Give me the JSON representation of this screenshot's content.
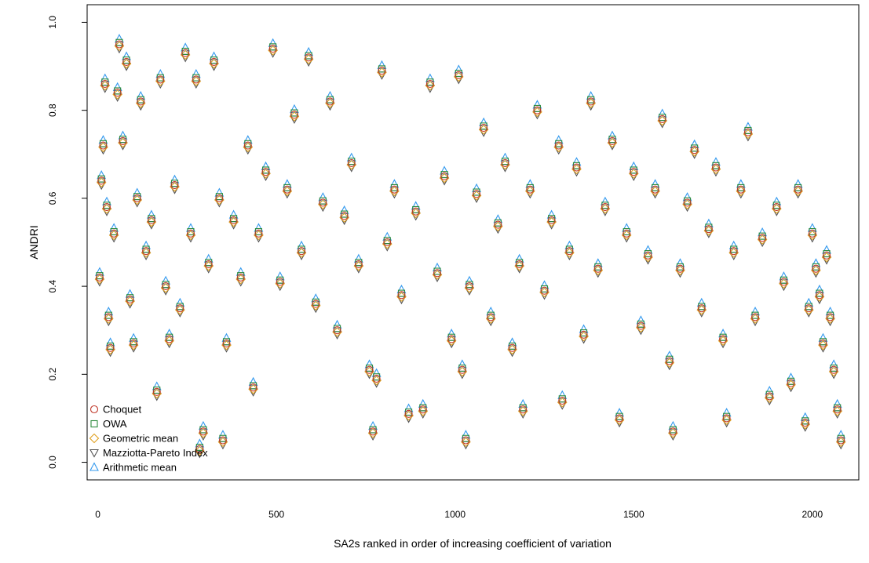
{
  "chart_data": {
    "type": "scatter",
    "xlabel": "SA2s ranked in order of increasing coefficient of variation",
    "ylabel": "ANDRI",
    "xlim": [
      -30,
      2130
    ],
    "ylim": [
      -0.04,
      1.04
    ],
    "x_ticks": [
      {
        "value": 0,
        "label": "0"
      },
      {
        "value": 500,
        "label": "500"
      },
      {
        "value": 1000,
        "label": "1000"
      },
      {
        "value": 1500,
        "label": "1500"
      },
      {
        "value": 2000,
        "label": "2000"
      }
    ],
    "y_ticks": [
      {
        "value": 0.0,
        "label": "0.0"
      },
      {
        "value": 0.2,
        "label": "0.2"
      },
      {
        "value": 0.4,
        "label": "0.4"
      },
      {
        "value": 0.6,
        "label": "0.6"
      },
      {
        "value": 0.8,
        "label": "0.8"
      },
      {
        "value": 1.0,
        "label": "1.0"
      }
    ],
    "grid": false,
    "legend_position": "bottom-left",
    "series": [
      {
        "name": "Choquet",
        "marker": "circle",
        "color": "#c0392b"
      },
      {
        "name": "OWA",
        "marker": "square",
        "color": "#2e8b3e"
      },
      {
        "name": "Geometric mean",
        "marker": "diamond",
        "color": "#e0a020"
      },
      {
        "name": "Mazziotta-Pareto Index",
        "marker": "triangle-down",
        "color": "#555555"
      },
      {
        "name": "Arithmetic mean",
        "marker": "triangle-up",
        "color": "#3399ee"
      }
    ],
    "summary_points": [
      [
        5,
        0.42
      ],
      [
        10,
        0.64
      ],
      [
        15,
        0.72
      ],
      [
        20,
        0.86
      ],
      [
        25,
        0.58
      ],
      [
        30,
        0.33
      ],
      [
        35,
        0.26
      ],
      [
        45,
        0.52
      ],
      [
        55,
        0.84
      ],
      [
        60,
        0.95
      ],
      [
        70,
        0.73
      ],
      [
        80,
        0.91
      ],
      [
        90,
        0.37
      ],
      [
        100,
        0.27
      ],
      [
        110,
        0.6
      ],
      [
        120,
        0.82
      ],
      [
        135,
        0.48
      ],
      [
        150,
        0.55
      ],
      [
        165,
        0.16
      ],
      [
        175,
        0.87
      ],
      [
        190,
        0.4
      ],
      [
        200,
        0.28
      ],
      [
        215,
        0.63
      ],
      [
        230,
        0.35
      ],
      [
        245,
        0.93
      ],
      [
        260,
        0.52
      ],
      [
        275,
        0.87
      ],
      [
        285,
        0.03
      ],
      [
        295,
        0.07
      ],
      [
        310,
        0.45
      ],
      [
        325,
        0.91
      ],
      [
        340,
        0.6
      ],
      [
        350,
        0.05
      ],
      [
        360,
        0.27
      ],
      [
        380,
        0.55
      ],
      [
        400,
        0.42
      ],
      [
        420,
        0.72
      ],
      [
        435,
        0.17
      ],
      [
        450,
        0.52
      ],
      [
        470,
        0.66
      ],
      [
        490,
        0.94
      ],
      [
        510,
        0.41
      ],
      [
        530,
        0.62
      ],
      [
        550,
        0.79
      ],
      [
        570,
        0.48
      ],
      [
        590,
        0.92
      ],
      [
        610,
        0.36
      ],
      [
        630,
        0.59
      ],
      [
        650,
        0.82
      ],
      [
        670,
        0.3
      ],
      [
        690,
        0.56
      ],
      [
        710,
        0.68
      ],
      [
        730,
        0.45
      ],
      [
        760,
        0.21
      ],
      [
        770,
        0.07
      ],
      [
        780,
        0.19
      ],
      [
        795,
        0.89
      ],
      [
        810,
        0.5
      ],
      [
        830,
        0.62
      ],
      [
        850,
        0.38
      ],
      [
        870,
        0.11
      ],
      [
        890,
        0.57
      ],
      [
        910,
        0.12
      ],
      [
        930,
        0.86
      ],
      [
        950,
        0.43
      ],
      [
        970,
        0.65
      ],
      [
        990,
        0.28
      ],
      [
        1010,
        0.88
      ],
      [
        1020,
        0.21
      ],
      [
        1030,
        0.05
      ],
      [
        1040,
        0.4
      ],
      [
        1060,
        0.61
      ],
      [
        1080,
        0.76
      ],
      [
        1100,
        0.33
      ],
      [
        1120,
        0.54
      ],
      [
        1140,
        0.68
      ],
      [
        1160,
        0.26
      ],
      [
        1180,
        0.45
      ],
      [
        1190,
        0.12
      ],
      [
        1210,
        0.62
      ],
      [
        1230,
        0.8
      ],
      [
        1250,
        0.39
      ],
      [
        1270,
        0.55
      ],
      [
        1290,
        0.72
      ],
      [
        1300,
        0.14
      ],
      [
        1320,
        0.48
      ],
      [
        1340,
        0.67
      ],
      [
        1360,
        0.29
      ],
      [
        1380,
        0.82
      ],
      [
        1400,
        0.44
      ],
      [
        1420,
        0.58
      ],
      [
        1440,
        0.73
      ],
      [
        1460,
        0.1
      ],
      [
        1480,
        0.52
      ],
      [
        1500,
        0.66
      ],
      [
        1520,
        0.31
      ],
      [
        1540,
        0.47
      ],
      [
        1560,
        0.62
      ],
      [
        1580,
        0.78
      ],
      [
        1600,
        0.23
      ],
      [
        1610,
        0.07
      ],
      [
        1630,
        0.44
      ],
      [
        1650,
        0.59
      ],
      [
        1670,
        0.71
      ],
      [
        1690,
        0.35
      ],
      [
        1710,
        0.53
      ],
      [
        1730,
        0.67
      ],
      [
        1750,
        0.28
      ],
      [
        1760,
        0.1
      ],
      [
        1780,
        0.48
      ],
      [
        1800,
        0.62
      ],
      [
        1820,
        0.75
      ],
      [
        1840,
        0.33
      ],
      [
        1860,
        0.51
      ],
      [
        1880,
        0.15
      ],
      [
        1900,
        0.58
      ],
      [
        1920,
        0.41
      ],
      [
        1940,
        0.18
      ],
      [
        1960,
        0.62
      ],
      [
        1980,
        0.09
      ],
      [
        1990,
        0.35
      ],
      [
        2000,
        0.52
      ],
      [
        2010,
        0.44
      ],
      [
        2020,
        0.38
      ],
      [
        2030,
        0.27
      ],
      [
        2040,
        0.47
      ],
      [
        2050,
        0.33
      ],
      [
        2060,
        0.21
      ],
      [
        2070,
        0.12
      ],
      [
        2080,
        0.05
      ]
    ]
  }
}
